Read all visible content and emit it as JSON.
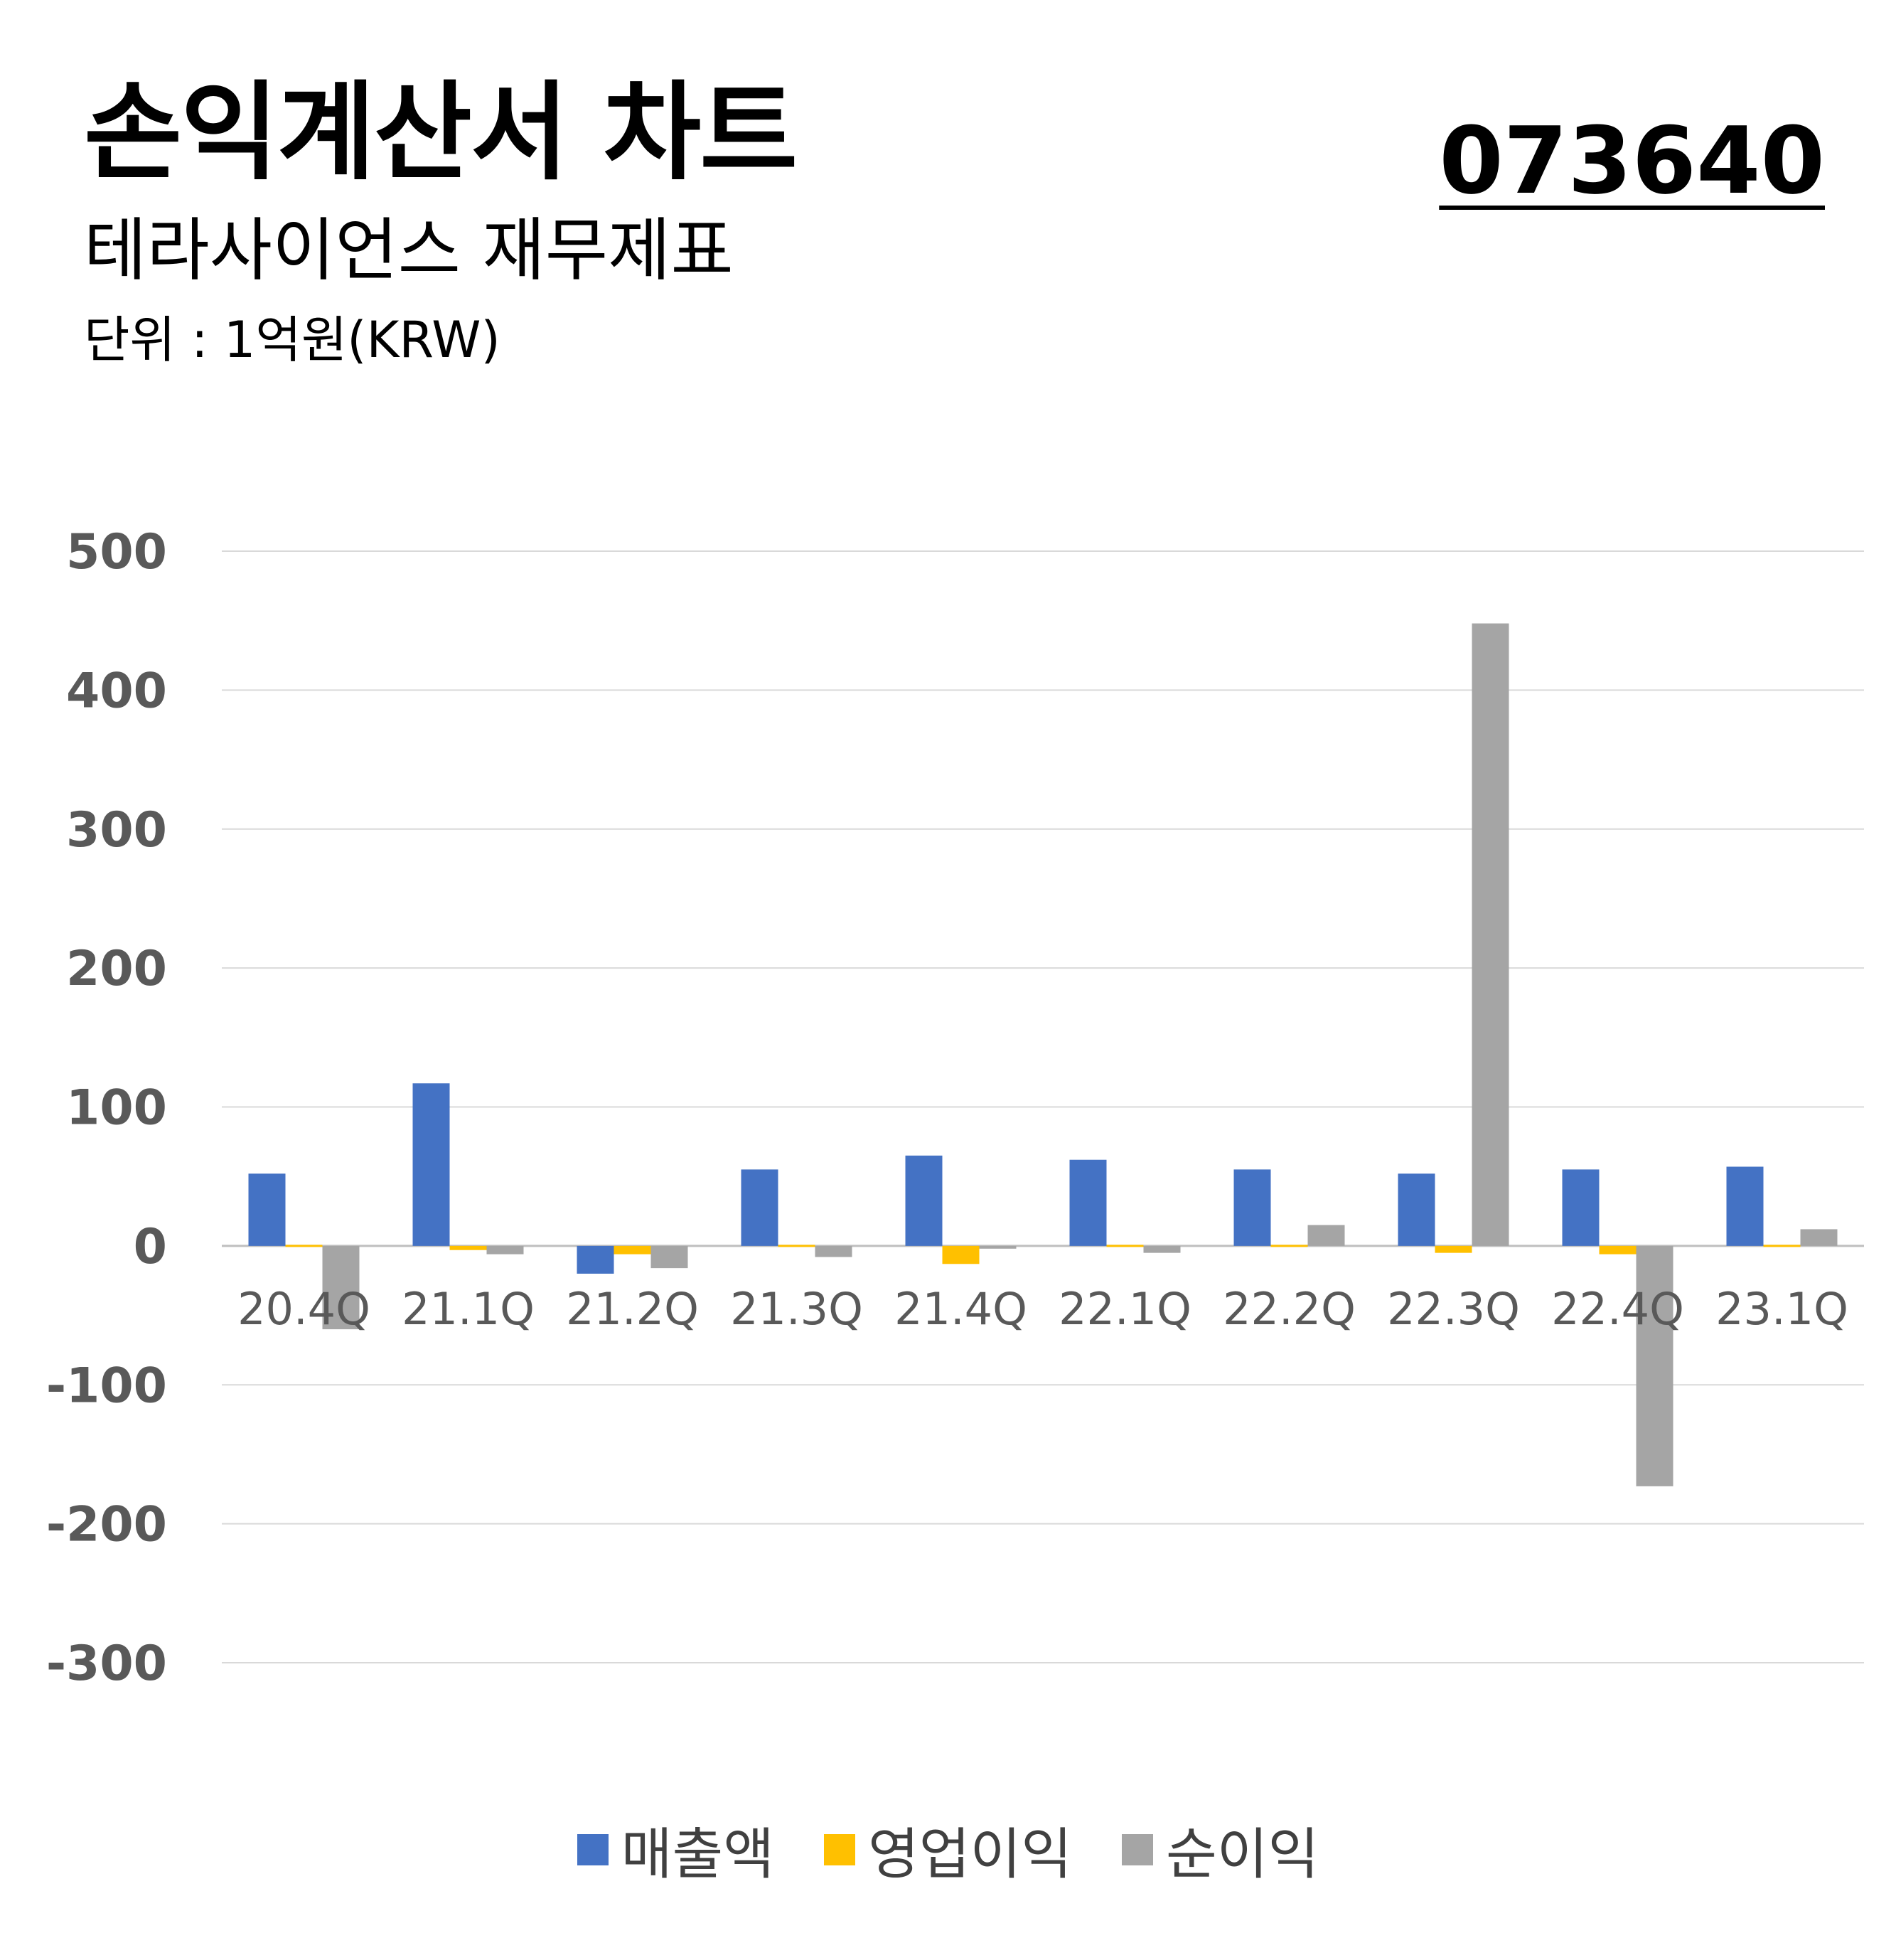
{
  "header": {
    "title": "손익계산서 차트",
    "subtitle": "테라사이언스 재무제표",
    "unit": "단위 : 1억원(KRW)",
    "code": "073640"
  },
  "chart_data": {
    "type": "bar",
    "categories": [
      "20.4Q",
      "21.1Q",
      "21.2Q",
      "21.3Q",
      "21.4Q",
      "22.1Q",
      "22.2Q",
      "22.3Q",
      "22.4Q",
      "23.1Q"
    ],
    "series": [
      {
        "name": "매출액",
        "color": "#4472c4",
        "values": [
          52,
          117,
          -20,
          55,
          65,
          62,
          55,
          52,
          55,
          57
        ]
      },
      {
        "name": "영업이익",
        "color": "#ffc000",
        "values": [
          -1,
          -3,
          -6,
          0,
          -13,
          0,
          0,
          -5,
          -6,
          -1
        ]
      },
      {
        "name": "순이익",
        "color": "#a5a5a5",
        "values": [
          -60,
          -6,
          -16,
          -8,
          -2,
          -5,
          15,
          448,
          -173,
          12
        ]
      }
    ],
    "ylim": [
      -300,
      500
    ],
    "yticks": [
      500,
      400,
      300,
      200,
      100,
      0,
      -100,
      -200,
      -300
    ],
    "grid": true,
    "legend_position": "bottom"
  }
}
